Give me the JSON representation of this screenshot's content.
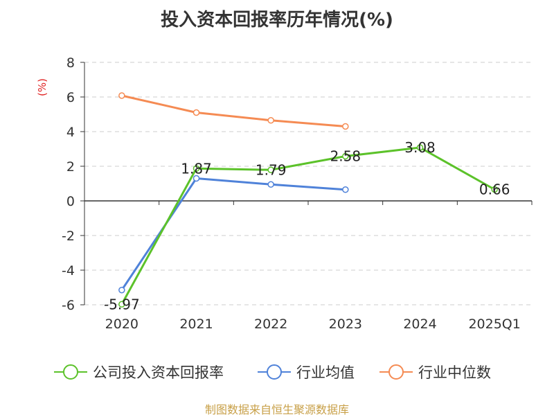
{
  "chart_data": {
    "type": "line",
    "title": "投入资本回报率历年情况(%)",
    "ylabel": "(%)",
    "categories": [
      "2020",
      "2021",
      "2022",
      "2023",
      "2024",
      "2025Q1"
    ],
    "ylim": [
      -6,
      8
    ],
    "yticks": [
      8,
      6,
      4,
      2,
      0,
      -2,
      -4,
      -6
    ],
    "grid": true,
    "legend_position": "bottom",
    "series": [
      {
        "name": "公司投入资本回报率",
        "color": "#5cc22a",
        "values": [
          -5.97,
          1.87,
          1.79,
          2.58,
          3.08,
          0.66
        ],
        "labels": [
          "-5.97",
          "1.87",
          "1.79",
          "2.58",
          "3.08",
          "0.66"
        ]
      },
      {
        "name": "行业均值",
        "color": "#4f82d9",
        "values": [
          -5.15,
          1.3,
          0.95,
          0.65,
          null,
          null
        ]
      },
      {
        "name": "行业中位数",
        "color": "#f58b53",
        "values": [
          6.08,
          5.1,
          4.65,
          4.3,
          null,
          null
        ]
      }
    ]
  },
  "source": "制图数据来自恒生聚源数据库"
}
